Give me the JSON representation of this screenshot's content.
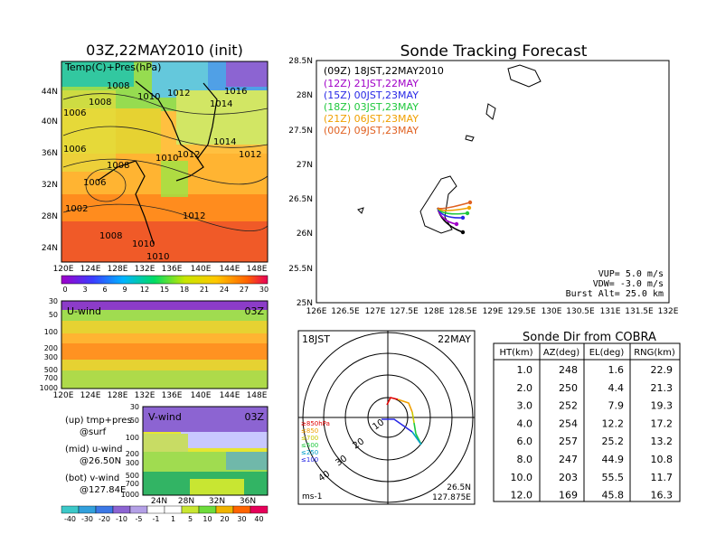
{
  "left": {
    "title": "03Z,22MAY2010 (init)",
    "map_label": "Temp(C)+Pres(hPa)",
    "lat_ticks": [
      "44N",
      "40N",
      "36N",
      "32N",
      "28N",
      "24N"
    ],
    "lon_ticks": [
      "120E",
      "124E",
      "128E",
      "132E",
      "136E",
      "140E",
      "144E",
      "148E"
    ],
    "isobars": [
      "1008",
      "1010",
      "1012",
      "1016",
      "1014",
      "1006",
      "1014",
      "1012",
      "1008",
      "1010",
      "1012",
      "1006",
      "1002",
      "1012",
      "1008",
      "1006",
      "1010",
      "1010",
      "1008"
    ],
    "temp_colorbar": [
      "0",
      "3",
      "6",
      "9",
      "12",
      "15",
      "18",
      "21",
      "24",
      "27",
      "30"
    ],
    "u_label": "U-wind",
    "u_time": "03Z",
    "v_label": "V-wind",
    "v_time": "03Z",
    "pres_ticks": [
      "30",
      "50",
      "100",
      "200",
      "300",
      "500",
      "700",
      "1000"
    ],
    "vlat_ticks": [
      "24N",
      "28N",
      "32N",
      "36N"
    ],
    "wind_colorbar": [
      "-40",
      "-30",
      "-20",
      "-10",
      "-5",
      "-1",
      "1",
      "5",
      "10",
      "20",
      "30",
      "40"
    ],
    "notes": [
      {
        "k": "(up) tmp+pres",
        "v": "@surf"
      },
      {
        "k": "(mid) u-wind",
        "v": "@26.50N"
      },
      {
        "k": "(bot) v-wind",
        "v": "@127.84E"
      }
    ]
  },
  "track": {
    "title": "Sonde Tracking Forecast",
    "lat_ticks": [
      "28.5N",
      "28N",
      "27.5N",
      "27N",
      "26.5N",
      "26N",
      "25.5N",
      "25N"
    ],
    "lon_ticks": [
      "126E",
      "126.5E",
      "127E",
      "127.5E",
      "128E",
      "128.5E",
      "129E",
      "129.5E",
      "130E",
      "130.5E",
      "131E",
      "131.5E",
      "132E"
    ],
    "legend": [
      {
        "label": "(09Z)  18JST,22MAY2010",
        "color": "#000000"
      },
      {
        "label": "(12Z)  21JST,22MAY",
        "color": "#a000c8"
      },
      {
        "label": "(15Z)  00JST,23MAY",
        "color": "#2828e6"
      },
      {
        "label": "(18Z)  03JST,23MAY",
        "color": "#1ec83c"
      },
      {
        "label": "(21Z)  06JST,23MAY",
        "color": "#f0a000"
      },
      {
        "label": "(00Z)  09JST,23MAY",
        "color": "#e06020"
      }
    ],
    "vup": "VUP=  5.0 m/s",
    "vdw": "VDW= -3.0 m/s",
    "burst": "Burst Alt= 25.0 km"
  },
  "polar": {
    "time": "18JST",
    "date": "22MAY",
    "ring_labels": [
      "10",
      "20",
      "30",
      "40"
    ],
    "legend": [
      {
        "label": "≥850hPa",
        "color": "#e00000"
      },
      {
        "label": "≤850",
        "color": "#f0a000"
      },
      {
        "label": "≤700",
        "color": "#c8c800"
      },
      {
        "label": "≤500",
        "color": "#1ec83c"
      },
      {
        "label": "≤250",
        "color": "#00a0c8"
      },
      {
        "label": "≤100",
        "color": "#2828e6"
      }
    ],
    "units": "ms-1",
    "loc_lat": "26.5N",
    "loc_lon": "127.875E"
  },
  "table": {
    "title": "Sonde Dir from COBRA",
    "headers": [
      "HT(km)",
      "AZ(deg)",
      "EL(deg)",
      "RNG(km)"
    ],
    "rows": [
      [
        "1.0",
        "248",
        "1.6",
        "22.9"
      ],
      [
        "2.0",
        "250",
        "4.4",
        "21.3"
      ],
      [
        "3.0",
        "252",
        "7.9",
        "19.3"
      ],
      [
        "4.0",
        "254",
        "12.2",
        "17.2"
      ],
      [
        "6.0",
        "257",
        "25.2",
        "13.2"
      ],
      [
        "8.0",
        "247",
        "44.9",
        "10.8"
      ],
      [
        "10.0",
        "203",
        "55.5",
        "11.7"
      ],
      [
        "12.0",
        "169",
        "45.8",
        "16.3"
      ]
    ]
  },
  "chart_data": {
    "type": "table",
    "title": "Sonde Dir from COBRA",
    "columns": [
      "HT(km)",
      "AZ(deg)",
      "EL(deg)",
      "RNG(km)"
    ],
    "rows": [
      [
        1.0,
        248,
        1.6,
        22.9
      ],
      [
        2.0,
        250,
        4.4,
        21.3
      ],
      [
        3.0,
        252,
        7.9,
        19.3
      ],
      [
        4.0,
        254,
        12.2,
        17.2
      ],
      [
        6.0,
        257,
        25.2,
        13.2
      ],
      [
        8.0,
        247,
        44.9,
        10.8
      ],
      [
        10.0,
        203,
        55.5,
        11.7
      ],
      [
        12.0,
        169,
        45.8,
        16.3
      ]
    ],
    "launch_times": [
      "09Z",
      "12Z",
      "15Z",
      "18Z",
      "21Z",
      "00Z"
    ],
    "track_xlim": [
      126,
      132
    ],
    "track_ylim": [
      25,
      28.5
    ]
  }
}
